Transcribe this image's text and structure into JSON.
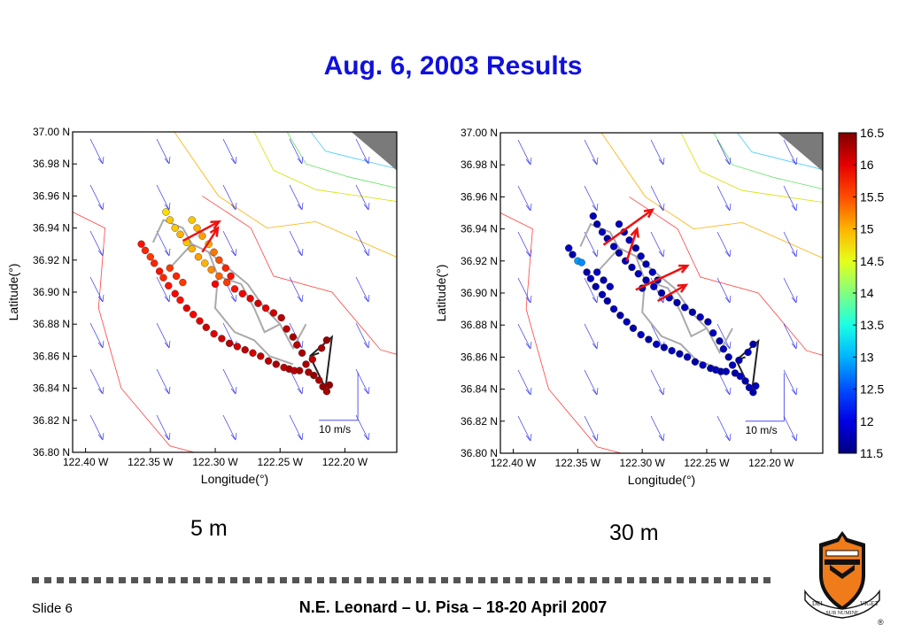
{
  "slide": {
    "title": "Aug. 6, 2003 Results",
    "footer_slide": "Slide 6",
    "footer_credit": "N.E. Leonard – U. Pisa – 18-20 April 2007",
    "crest_motto": [
      "DEI",
      "SUB NUMINE",
      "VIGET"
    ],
    "registered_mark": "®"
  },
  "chart_data": [
    {
      "type": "scatter",
      "caption": "5 m",
      "xlabel": "Longitude(°)",
      "ylabel": "Latitude(°)",
      "xlim": [
        -122.41,
        -122.16
      ],
      "ylim": [
        36.8,
        37.0
      ],
      "xtick_labels": [
        "122.40 W",
        "122.35 W",
        "122.30 W",
        "122.25 W",
        "122.20 W"
      ],
      "xtick_values": [
        -122.4,
        -122.35,
        -122.3,
        -122.25,
        -122.2
      ],
      "ytick_labels": [
        "36.80 N",
        "36.82 N",
        "36.84 N",
        "36.86 N",
        "36.88 N",
        "36.90 N",
        "36.92 N",
        "36.94 N",
        "36.96 N",
        "36.98 N",
        "37.00 N"
      ],
      "ytick_values": [
        36.8,
        36.82,
        36.84,
        36.86,
        36.88,
        36.9,
        36.92,
        36.94,
        36.96,
        36.98,
        37.0
      ],
      "current_scale_label": "10 m/s",
      "colorbar": null,
      "temperature_points": [
        [
          -122.357,
          36.93,
          15.8
        ],
        [
          -122.354,
          36.926,
          15.7
        ],
        [
          -122.35,
          36.922,
          15.6
        ],
        [
          -122.347,
          36.918,
          15.7
        ],
        [
          -122.343,
          36.913,
          15.8
        ],
        [
          -122.34,
          36.909,
          15.7
        ],
        [
          -122.336,
          36.904,
          15.8
        ],
        [
          -122.331,
          36.899,
          15.9
        ],
        [
          -122.327,
          36.895,
          15.8
        ],
        [
          -122.322,
          36.89,
          16.0
        ],
        [
          -122.317,
          36.886,
          15.9
        ],
        [
          -122.312,
          36.882,
          16.0
        ],
        [
          -122.307,
          36.878,
          16.1
        ],
        [
          -122.301,
          36.874,
          16.0
        ],
        [
          -122.295,
          36.871,
          16.1
        ],
        [
          -122.289,
          36.868,
          16.2
        ],
        [
          -122.283,
          36.866,
          16.1
        ],
        [
          -122.277,
          36.864,
          16.2
        ],
        [
          -122.271,
          36.862,
          16.1
        ],
        [
          -122.265,
          36.86,
          16.2
        ],
        [
          -122.259,
          36.857,
          16.2
        ],
        [
          -122.253,
          36.855,
          16.3
        ],
        [
          -122.247,
          36.853,
          16.2
        ],
        [
          -122.338,
          36.95,
          14.8
        ],
        [
          -122.335,
          36.945,
          14.9
        ],
        [
          -122.331,
          36.94,
          14.9
        ],
        [
          -122.327,
          36.936,
          15.0
        ],
        [
          -122.322,
          36.931,
          14.9
        ],
        [
          -122.318,
          36.927,
          15.0
        ],
        [
          -122.313,
          36.922,
          15.1
        ],
        [
          -122.308,
          36.918,
          15.0
        ],
        [
          -122.303,
          36.914,
          15.2
        ],
        [
          -122.297,
          36.91,
          15.4
        ],
        [
          -122.291,
          36.906,
          15.6
        ],
        [
          -122.285,
          36.902,
          15.8
        ],
        [
          -122.279,
          36.899,
          15.9
        ],
        [
          -122.273,
          36.896,
          16.0
        ],
        [
          -122.267,
          36.893,
          16.1
        ],
        [
          -122.261,
          36.89,
          16.0
        ],
        [
          -122.255,
          36.887,
          16.1
        ],
        [
          -122.249,
          36.884,
          16.2
        ],
        [
          -122.318,
          36.945,
          14.9
        ],
        [
          -122.314,
          36.94,
          15.0
        ],
        [
          -122.31,
          36.935,
          15.1
        ],
        [
          -122.305,
          36.93,
          15.0
        ],
        [
          -122.301,
          36.925,
          15.3
        ],
        [
          -122.297,
          36.92,
          15.5
        ],
        [
          -122.292,
          36.915,
          15.7
        ],
        [
          -122.288,
          36.91,
          15.8
        ],
        [
          -122.335,
          36.915,
          15.6
        ],
        [
          -122.33,
          36.91,
          15.7
        ],
        [
          -122.325,
          36.906,
          15.6
        ],
        [
          -122.3,
          36.905,
          15.9
        ],
        [
          -122.245,
          36.877,
          16.2
        ],
        [
          -122.24,
          36.872,
          16.3
        ],
        [
          -122.237,
          36.867,
          16.2
        ],
        [
          -122.233,
          36.862,
          16.3
        ],
        [
          -122.243,
          36.852,
          16.3
        ],
        [
          -122.239,
          36.851,
          16.2
        ],
        [
          -122.235,
          36.851,
          16.3
        ],
        [
          -122.228,
          36.85,
          16.3
        ],
        [
          -122.224,
          36.848,
          16.4
        ],
        [
          -122.22,
          36.845,
          16.3
        ],
        [
          -122.217,
          36.841,
          16.4
        ],
        [
          -122.214,
          36.838,
          16.3
        ],
        [
          -122.212,
          36.842,
          16.4
        ],
        [
          -122.214,
          36.87,
          16.4
        ],
        [
          -122.218,
          36.865,
          16.3
        ],
        [
          -122.225,
          36.858,
          16.2
        ],
        [
          -122.23,
          36.855,
          16.3
        ]
      ],
      "glider_paths": [
        {
          "color": "#aaaaaa",
          "points": [
            [
              -122.348,
              36.931
            ],
            [
              -122.34,
              36.945
            ],
            [
              -122.325,
              36.94
            ],
            [
              -122.318,
              36.93
            ],
            [
              -122.335,
              36.915
            ]
          ]
        },
        {
          "color": "#aaaaaa",
          "points": [
            [
              -122.318,
              36.93
            ],
            [
              -122.305,
              36.925
            ],
            [
              -122.298,
              36.91
            ],
            [
              -122.28,
              36.905
            ],
            [
              -122.27,
              36.89
            ]
          ]
        },
        {
          "color": "#aaaaaa",
          "points": [
            [
              -122.305,
              36.925
            ],
            [
              -122.29,
              36.915
            ],
            [
              -122.275,
              36.905
            ],
            [
              -122.262,
              36.89
            ],
            [
              -122.25,
              36.88
            ]
          ]
        },
        {
          "color": "#aaaaaa",
          "points": [
            [
              -122.298,
              36.91
            ],
            [
              -122.3,
              36.89
            ],
            [
              -122.285,
              36.875
            ],
            [
              -122.27,
              36.87
            ],
            [
              -122.258,
              36.86
            ],
            [
              -122.24,
              36.855
            ]
          ]
        },
        {
          "color": "#aaaaaa",
          "points": [
            [
              -122.27,
              36.89
            ],
            [
              -122.262,
              36.875
            ],
            [
              -122.25,
              36.88
            ],
            [
              -122.24,
              36.865
            ],
            [
              -122.23,
              36.88
            ]
          ]
        },
        {
          "color": "#222222",
          "points": [
            [
              -122.227,
              36.86
            ],
            [
              -122.215,
              36.84
            ],
            [
              -122.21,
              36.872
            ],
            [
              -122.227,
              36.86
            ],
            [
              -122.22,
              36.862
            ]
          ]
        }
      ],
      "velocity_arrows": [
        {
          "x": -122.325,
          "y": 36.932,
          "dx": 0.028,
          "dy": 0.012
        },
        {
          "x": -122.31,
          "y": 36.925,
          "dx": 0.012,
          "dy": 0.015
        }
      ]
    },
    {
      "type": "scatter",
      "caption": "30 m",
      "xlabel": "Longitude(°)",
      "ylabel": "Latitude(°)",
      "xlim": [
        -122.41,
        -122.16
      ],
      "ylim": [
        36.8,
        37.0
      ],
      "xtick_labels": [
        "122.40 W",
        "122.35 W",
        "122.30 W",
        "122.25 W",
        "122.20 W"
      ],
      "xtick_values": [
        -122.4,
        -122.35,
        -122.3,
        -122.25,
        -122.2
      ],
      "ytick_labels": [
        "36.80 N",
        "36.82 N",
        "36.84 N",
        "36.86 N",
        "36.88 N",
        "36.90 N",
        "36.92 N",
        "36.94 N",
        "36.96 N",
        "36.98 N",
        "37.00 N"
      ],
      "ytick_values": [
        36.8,
        36.82,
        36.84,
        36.86,
        36.88,
        36.9,
        36.92,
        36.94,
        36.96,
        36.98,
        37.0
      ],
      "current_scale_label": "10 m/s",
      "colorbar": {
        "min": 11.5,
        "max": 16.5,
        "tick_labels": [
          "16.5",
          "16",
          "15.5",
          "15",
          "14.5",
          "14",
          "13.5",
          "13",
          "12.5",
          "12",
          "11.5"
        ],
        "tick_values": [
          16.5,
          16.0,
          15.5,
          15.0,
          14.5,
          14.0,
          13.5,
          13.0,
          12.5,
          12.0,
          11.5
        ]
      },
      "temperature_points": [
        [
          -122.357,
          36.928,
          11.8
        ],
        [
          -122.354,
          36.924,
          11.7
        ],
        [
          -122.35,
          36.92,
          12.9
        ],
        [
          -122.347,
          36.919,
          12.8
        ],
        [
          -122.343,
          36.913,
          11.7
        ],
        [
          -122.34,
          36.909,
          11.8
        ],
        [
          -122.336,
          36.904,
          11.7
        ],
        [
          -122.331,
          36.899,
          11.8
        ],
        [
          -122.327,
          36.895,
          11.7
        ],
        [
          -122.322,
          36.89,
          11.8
        ],
        [
          -122.317,
          36.886,
          11.7
        ],
        [
          -122.312,
          36.882,
          11.8
        ],
        [
          -122.307,
          36.878,
          11.7
        ],
        [
          -122.301,
          36.874,
          11.8
        ],
        [
          -122.295,
          36.871,
          11.7
        ],
        [
          -122.289,
          36.868,
          11.8
        ],
        [
          -122.283,
          36.866,
          11.7
        ],
        [
          -122.277,
          36.864,
          11.8
        ],
        [
          -122.271,
          36.862,
          11.7
        ],
        [
          -122.265,
          36.86,
          11.8
        ],
        [
          -122.259,
          36.857,
          11.7
        ],
        [
          -122.253,
          36.855,
          11.8
        ],
        [
          -122.247,
          36.853,
          11.7
        ],
        [
          -122.338,
          36.948,
          11.8
        ],
        [
          -122.335,
          36.943,
          11.7
        ],
        [
          -122.331,
          36.938,
          11.8
        ],
        [
          -122.327,
          36.934,
          11.7
        ],
        [
          -122.322,
          36.929,
          11.8
        ],
        [
          -122.318,
          36.925,
          11.7
        ],
        [
          -122.313,
          36.92,
          11.8
        ],
        [
          -122.308,
          36.916,
          11.7
        ],
        [
          -122.303,
          36.912,
          11.8
        ],
        [
          -122.297,
          36.908,
          11.7
        ],
        [
          -122.291,
          36.904,
          11.8
        ],
        [
          -122.285,
          36.9,
          11.7
        ],
        [
          -122.279,
          36.897,
          11.8
        ],
        [
          -122.273,
          36.894,
          11.7
        ],
        [
          -122.267,
          36.891,
          11.8
        ],
        [
          -122.261,
          36.888,
          11.7
        ],
        [
          -122.255,
          36.885,
          11.8
        ],
        [
          -122.249,
          36.882,
          11.7
        ],
        [
          -122.318,
          36.943,
          11.8
        ],
        [
          -122.314,
          36.938,
          11.7
        ],
        [
          -122.31,
          36.933,
          11.8
        ],
        [
          -122.305,
          36.928,
          11.7
        ],
        [
          -122.301,
          36.923,
          11.8
        ],
        [
          -122.297,
          36.918,
          11.7
        ],
        [
          -122.292,
          36.913,
          11.8
        ],
        [
          -122.288,
          36.908,
          11.7
        ],
        [
          -122.335,
          36.913,
          11.8
        ],
        [
          -122.33,
          36.908,
          11.7
        ],
        [
          -122.325,
          36.904,
          11.8
        ],
        [
          -122.3,
          36.903,
          11.7
        ],
        [
          -122.245,
          36.875,
          11.8
        ],
        [
          -122.24,
          36.87,
          11.7
        ],
        [
          -122.237,
          36.865,
          11.8
        ],
        [
          -122.233,
          36.86,
          11.7
        ],
        [
          -122.243,
          36.852,
          11.8
        ],
        [
          -122.239,
          36.851,
          11.7
        ],
        [
          -122.235,
          36.851,
          11.8
        ],
        [
          -122.228,
          36.85,
          11.7
        ],
        [
          -122.224,
          36.848,
          11.8
        ],
        [
          -122.22,
          36.845,
          11.7
        ],
        [
          -122.217,
          36.841,
          11.8
        ],
        [
          -122.214,
          36.838,
          11.7
        ],
        [
          -122.212,
          36.842,
          11.8
        ],
        [
          -122.214,
          36.868,
          11.7
        ],
        [
          -122.218,
          36.863,
          11.8
        ],
        [
          -122.225,
          36.858,
          11.7
        ],
        [
          -122.23,
          36.855,
          11.8
        ]
      ],
      "glider_paths": [
        {
          "color": "#aaaaaa",
          "points": [
            [
              -122.348,
              36.929
            ],
            [
              -122.34,
              36.943
            ],
            [
              -122.325,
              36.938
            ],
            [
              -122.318,
              36.928
            ],
            [
              -122.335,
              36.913
            ]
          ]
        },
        {
          "color": "#aaaaaa",
          "points": [
            [
              -122.318,
              36.928
            ],
            [
              -122.305,
              36.923
            ],
            [
              -122.298,
              36.908
            ],
            [
              -122.28,
              36.903
            ],
            [
              -122.27,
              36.888
            ]
          ]
        },
        {
          "color": "#aaaaaa",
          "points": [
            [
              -122.305,
              36.923
            ],
            [
              -122.29,
              36.913
            ],
            [
              -122.275,
              36.903
            ],
            [
              -122.262,
              36.888
            ],
            [
              -122.25,
              36.878
            ]
          ]
        },
        {
          "color": "#aaaaaa",
          "points": [
            [
              -122.298,
              36.908
            ],
            [
              -122.3,
              36.888
            ],
            [
              -122.285,
              36.873
            ],
            [
              -122.27,
              36.868
            ],
            [
              -122.258,
              36.858
            ],
            [
              -122.24,
              36.853
            ]
          ]
        },
        {
          "color": "#aaaaaa",
          "points": [
            [
              -122.27,
              36.888
            ],
            [
              -122.262,
              36.873
            ],
            [
              -122.25,
              36.878
            ],
            [
              -122.24,
              36.863
            ],
            [
              -122.23,
              36.878
            ]
          ]
        },
        {
          "color": "#222222",
          "points": [
            [
              -122.227,
              36.858
            ],
            [
              -122.215,
              36.838
            ],
            [
              -122.21,
              36.87
            ],
            [
              -122.227,
              36.858
            ],
            [
              -122.22,
              36.86
            ]
          ]
        }
      ],
      "velocity_arrows": [
        {
          "x": -122.33,
          "y": 36.93,
          "dx": 0.038,
          "dy": 0.022
        },
        {
          "x": -122.312,
          "y": 36.92,
          "dx": 0.008,
          "dy": 0.02
        },
        {
          "x": -122.305,
          "y": 36.902,
          "dx": 0.04,
          "dy": 0.015
        },
        {
          "x": -122.288,
          "y": 36.895,
          "dx": 0.022,
          "dy": 0.01
        }
      ]
    }
  ]
}
